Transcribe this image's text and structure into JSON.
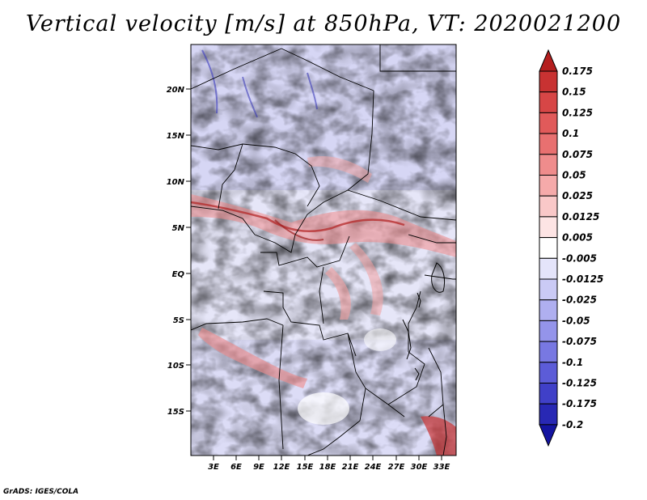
{
  "title": "Vertical velocity [m/s] at 850hPa, VT: 2020021200",
  "credit": "GrADS: IGES/COLA",
  "lat_labels": [
    "20N",
    "15N",
    "10N",
    "5N",
    "EQ",
    "5S",
    "10S",
    "15S"
  ],
  "lon_labels": [
    "3E",
    "6E",
    "9E",
    "12E",
    "15E",
    "18E",
    "21E",
    "24E",
    "27E",
    "30E",
    "33E"
  ],
  "colorbar": {
    "labels": [
      "0.175",
      "0.15",
      "0.125",
      "0.1",
      "0.075",
      "0.05",
      "0.025",
      "0.0125",
      "0.005",
      "-0.005",
      "-0.0125",
      "-0.025",
      "-0.05",
      "-0.075",
      "-0.1",
      "-0.125",
      "-0.175",
      "-0.2"
    ],
    "colors": [
      "#b41e1e",
      "#c83232",
      "#d74646",
      "#e15a5a",
      "#e87070",
      "#ef8c8c",
      "#f5aaaa",
      "#f9c8c8",
      "#fde4e4",
      "#ffffff",
      "#e4e4fa",
      "#cacaf5",
      "#afaff0",
      "#9494ea",
      "#7878e2",
      "#5c5cd8",
      "#4040c8",
      "#2828b4",
      "#1414a0"
    ]
  }
}
